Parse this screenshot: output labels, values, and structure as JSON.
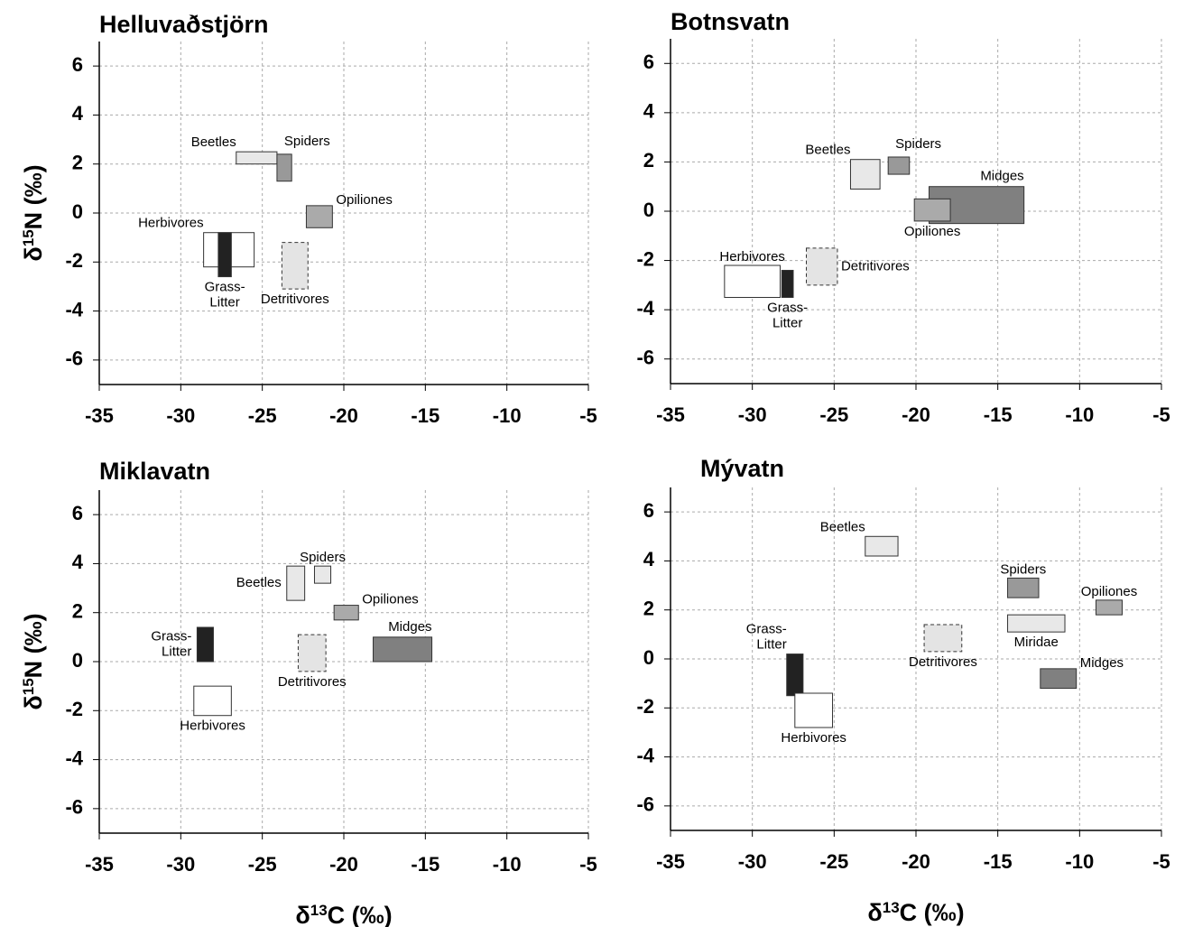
{
  "chart_data": [
    {
      "type": "range_box",
      "title": "Helluvaðstjörn",
      "xlim": [
        -35,
        -5
      ],
      "ylim": [
        -7,
        7
      ],
      "xticks": [
        -35,
        -30,
        -25,
        -20,
        -15,
        -10,
        -5
      ],
      "yticks": [
        -6,
        -4,
        -2,
        0,
        2,
        4,
        6
      ],
      "grid": true,
      "y_label": [
        "δ",
        "15",
        "N (‰)"
      ],
      "boxes": [
        {
          "label": [
            "Beetles"
          ],
          "color": "#e8e8e8",
          "dashed": false,
          "x": [
            -26.6,
            -24.1
          ],
          "y": [
            2.0,
            2.5
          ],
          "label_side": "above-left"
        },
        {
          "label": [
            "Spiders"
          ],
          "color": "#999999",
          "dashed": false,
          "x": [
            -24.1,
            -23.2
          ],
          "y": [
            1.3,
            2.4
          ],
          "label_side": "above-start"
        },
        {
          "label": [
            "Opiliones"
          ],
          "color": "#aaaaaa",
          "dashed": false,
          "x": [
            -22.3,
            -20.7
          ],
          "y": [
            -0.6,
            0.3
          ],
          "label_side": "above-right"
        },
        {
          "label": [
            "Herbivores"
          ],
          "color": "#ffffff",
          "dashed": false,
          "x": [
            -28.6,
            -25.5
          ],
          "y": [
            -2.2,
            -0.8
          ],
          "label_side": "above-left"
        },
        {
          "label": [
            "Grass-",
            "Litter"
          ],
          "color": "#222222",
          "dashed": false,
          "x": [
            -27.7,
            -26.9
          ],
          "y": [
            -2.6,
            -0.8
          ],
          "label_side": "below"
        },
        {
          "label": [
            "Detritivores"
          ],
          "color": "#e4e4e4",
          "dashed": true,
          "x": [
            -23.8,
            -22.2
          ],
          "y": [
            -3.1,
            -1.2
          ],
          "label_side": "below"
        }
      ]
    },
    {
      "type": "range_box",
      "title": "Botnsvatn",
      "xlim": [
        -35,
        -5
      ],
      "ylim": [
        -7,
        7
      ],
      "xticks": [
        -35,
        -30,
        -25,
        -20,
        -15,
        -10,
        -5
      ],
      "yticks": [
        -6,
        -4,
        -2,
        0,
        2,
        4,
        6
      ],
      "grid": true,
      "boxes": [
        {
          "label": [
            "Beetles"
          ],
          "color": "#e8e8e8",
          "dashed": false,
          "x": [
            -24.0,
            -22.2
          ],
          "y": [
            0.9,
            2.1
          ],
          "label_side": "above-left"
        },
        {
          "label": [
            "Spiders"
          ],
          "color": "#999999",
          "dashed": false,
          "x": [
            -21.7,
            -20.4
          ],
          "y": [
            1.5,
            2.2
          ],
          "label_side": "above-start"
        },
        {
          "label": [
            "Midges"
          ],
          "color": "#808080",
          "dashed": false,
          "x": [
            -19.2,
            -13.4
          ],
          "y": [
            -0.5,
            1.0
          ],
          "label_side": "above-end"
        },
        {
          "label": [
            "Opiliones"
          ],
          "color": "#aaaaaa",
          "dashed": false,
          "x": [
            -20.1,
            -17.9
          ],
          "y": [
            -0.4,
            0.5
          ],
          "label_side": "below"
        },
        {
          "label": [
            "Herbivores"
          ],
          "color": "#ffffff",
          "dashed": false,
          "x": [
            -31.7,
            -28.3
          ],
          "y": [
            -3.5,
            -2.2
          ],
          "label_side": "above"
        },
        {
          "label": [
            "Grass-",
            "Litter"
          ],
          "color": "#222222",
          "dashed": false,
          "x": [
            -28.2,
            -27.5
          ],
          "y": [
            -3.5,
            -2.4
          ],
          "label_side": "below"
        },
        {
          "label": [
            "Detritivores"
          ],
          "color": "#e4e4e4",
          "dashed": true,
          "x": [
            -26.7,
            -24.8
          ],
          "y": [
            -3.0,
            -1.5
          ],
          "label_side": "right"
        }
      ]
    },
    {
      "type": "range_box",
      "title": "Miklavatn",
      "xlim": [
        -35,
        -5
      ],
      "ylim": [
        -7,
        7
      ],
      "xticks": [
        -35,
        -30,
        -25,
        -20,
        -15,
        -10,
        -5
      ],
      "yticks": [
        -6,
        -4,
        -2,
        0,
        2,
        4,
        6
      ],
      "grid": true,
      "y_label": [
        "δ",
        "15",
        "N (‰)"
      ],
      "x_label": [
        "δ",
        "13",
        "C (‰)"
      ],
      "boxes": [
        {
          "label": [
            "Beetles"
          ],
          "color": "#e8e8e8",
          "dashed": false,
          "x": [
            -23.5,
            -22.4
          ],
          "y": [
            2.5,
            3.9
          ],
          "label_side": "left"
        },
        {
          "label": [
            "Spiders"
          ],
          "color": "#e8e8e8",
          "dashed": false,
          "x": [
            -21.8,
            -20.8
          ],
          "y": [
            3.2,
            3.9
          ],
          "label_side": "above"
        },
        {
          "label": [
            "Opiliones"
          ],
          "color": "#aaaaaa",
          "dashed": false,
          "x": [
            -20.6,
            -19.1
          ],
          "y": [
            1.7,
            2.3
          ],
          "label_side": "above-right"
        },
        {
          "label": [
            "Midges"
          ],
          "color": "#808080",
          "dashed": false,
          "x": [
            -18.2,
            -14.6
          ],
          "y": [
            0.0,
            1.0
          ],
          "label_side": "above-end"
        },
        {
          "label": [
            "Grass-",
            "Litter"
          ],
          "color": "#222222",
          "dashed": false,
          "x": [
            -29.0,
            -28.0
          ],
          "y": [
            0.0,
            1.4
          ],
          "label_side": "left"
        },
        {
          "label": [
            "Detritivores"
          ],
          "color": "#e4e4e4",
          "dashed": true,
          "x": [
            -22.8,
            -21.1
          ],
          "y": [
            -0.4,
            1.1
          ],
          "label_side": "below"
        },
        {
          "label": [
            "Herbivores"
          ],
          "color": "#ffffff",
          "dashed": false,
          "x": [
            -29.2,
            -26.9
          ],
          "y": [
            -2.2,
            -1.0
          ],
          "label_side": "below"
        }
      ]
    },
    {
      "type": "range_box",
      "title": "Mývatn",
      "xlim": [
        -35,
        -5
      ],
      "ylim": [
        -7,
        7
      ],
      "xticks": [
        -35,
        -30,
        -25,
        -20,
        -15,
        -10,
        -5
      ],
      "yticks": [
        -6,
        -4,
        -2,
        0,
        2,
        4,
        6
      ],
      "grid": true,
      "x_label": [
        "δ",
        "13",
        "C (‰)"
      ],
      "boxes": [
        {
          "label": [
            "Beetles"
          ],
          "color": "#e8e8e8",
          "dashed": false,
          "x": [
            -23.1,
            -21.1
          ],
          "y": [
            4.2,
            5.0
          ],
          "label_side": "above-left"
        },
        {
          "label": [
            "Spiders"
          ],
          "color": "#999999",
          "dashed": false,
          "x": [
            -14.4,
            -12.5
          ],
          "y": [
            2.5,
            3.3
          ],
          "label_side": "above"
        },
        {
          "label": [
            "Opiliones"
          ],
          "color": "#aaaaaa",
          "dashed": false,
          "x": [
            -9.0,
            -7.4
          ],
          "y": [
            1.8,
            2.4
          ],
          "label_side": "above"
        },
        {
          "label": [
            "Miridae"
          ],
          "color": "#e8e8e8",
          "dashed": false,
          "x": [
            -14.4,
            -10.9
          ],
          "y": [
            1.1,
            1.8
          ],
          "label_side": "below"
        },
        {
          "label": [
            "Detritivores"
          ],
          "color": "#e4e4e4",
          "dashed": true,
          "x": [
            -19.5,
            -17.2
          ],
          "y": [
            0.3,
            1.4
          ],
          "label_side": "below"
        },
        {
          "label": [
            "Grass-",
            "Litter"
          ],
          "color": "#222222",
          "dashed": false,
          "x": [
            -27.9,
            -26.9
          ],
          "y": [
            -1.5,
            0.2
          ],
          "label_side": "above-left"
        },
        {
          "label": [
            "Herbivores"
          ],
          "color": "#ffffff",
          "dashed": false,
          "x": [
            -27.4,
            -25.1
          ],
          "y": [
            -2.8,
            -1.4
          ],
          "label_side": "below"
        },
        {
          "label": [
            "Midges"
          ],
          "color": "#808080",
          "dashed": false,
          "x": [
            -12.4,
            -10.2
          ],
          "y": [
            -1.2,
            -0.4
          ],
          "label_side": "above-right"
        }
      ]
    }
  ]
}
